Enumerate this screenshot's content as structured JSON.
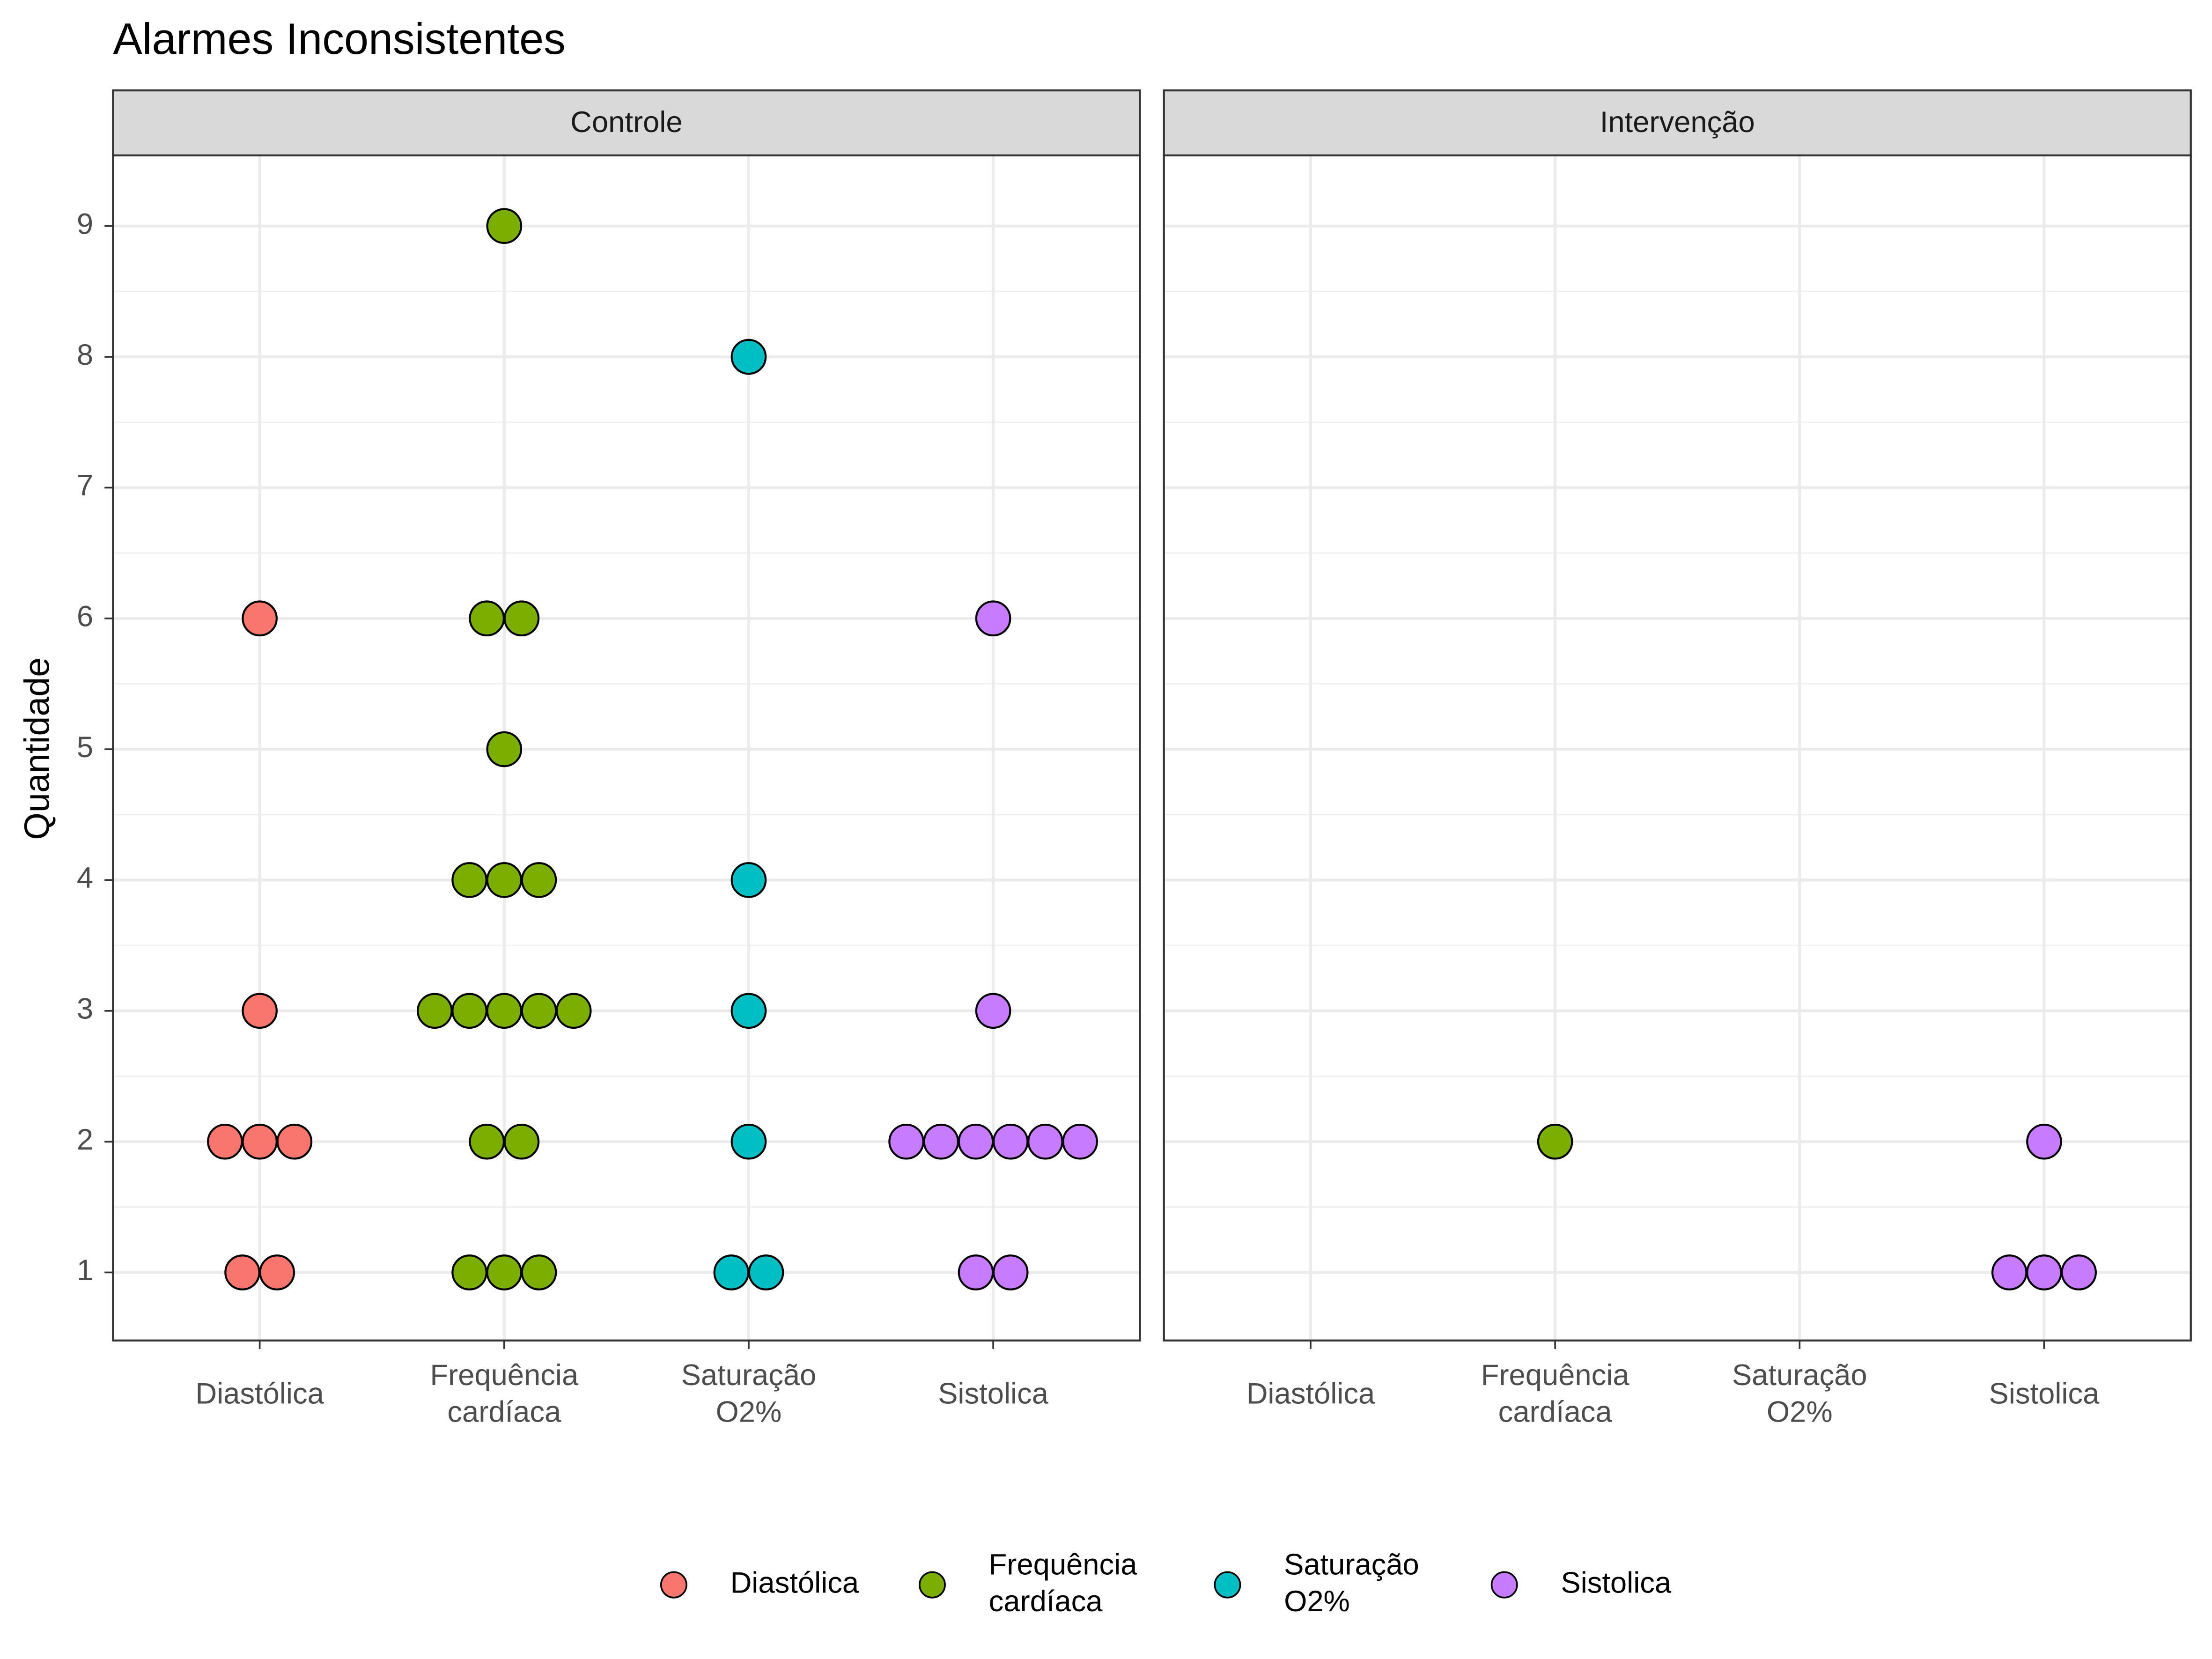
{
  "chart_data": {
    "type": "dotplot",
    "title": "Alarmes Inconsistentes",
    "ylabel": "Quantidade",
    "facets": [
      "Controle",
      "Intervenção"
    ],
    "series": [
      {
        "name": "Diastólica",
        "color": "#F8766D",
        "values": [
          [
            6,
            3,
            2,
            2,
            2,
            1,
            1
          ],
          []
        ]
      },
      {
        "name": "Frequência cardíaca",
        "color": "#7CAE00",
        "values": [
          [
            9,
            6,
            6,
            5,
            4,
            4,
            4,
            3,
            3,
            3,
            3,
            3,
            2,
            2,
            1,
            1,
            1
          ],
          [
            2
          ]
        ]
      },
      {
        "name": "Saturação O2%",
        "color": "#00BFC4",
        "values": [
          [
            8,
            4,
            3,
            2,
            1,
            1
          ],
          []
        ]
      },
      {
        "name": "Sistolica",
        "color": "#C77CFF",
        "values": [
          [
            6,
            3,
            2,
            2,
            2,
            2,
            2,
            2,
            1,
            1
          ],
          [
            2,
            1,
            1,
            1
          ]
        ]
      }
    ],
    "ylim": [
      0.48,
      9.54
    ],
    "yticks": [
      1,
      2,
      3,
      4,
      5,
      6,
      7,
      8,
      9
    ],
    "grid": true,
    "legend": "bottom"
  }
}
